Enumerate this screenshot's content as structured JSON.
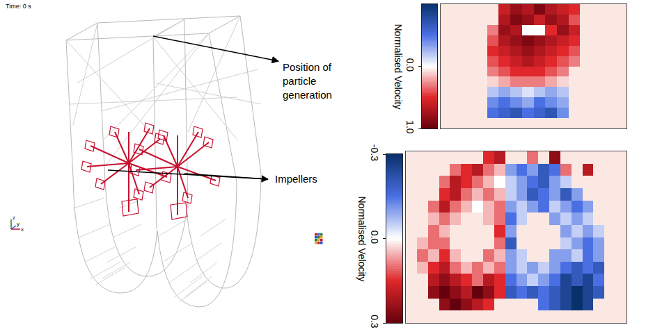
{
  "diagram": {
    "time_label": "Time: 0 s",
    "labels": [
      "Position of particle generation",
      "Impellers"
    ],
    "axes": [
      "z",
      "y",
      "x"
    ]
  },
  "chart_data": [
    {
      "type": "heatmap",
      "colorbar_title": "Normalised Velocity",
      "tick_labels": false,
      "colors": [
        "#08306b",
        "#4a6fe3",
        "#ffffff",
        "#e0272b",
        "#67000d"
      ],
      "zlim": [
        -1,
        1
      ],
      "zticks": [
        {
          "value": 0,
          "label": "0.0"
        },
        {
          "value": 1,
          "label": "1.0"
        }
      ],
      "cells": [
        [
          null,
          null,
          null,
          null,
          null,
          0.6,
          0.8,
          0.7,
          0.9,
          0.7,
          0.6,
          0.5,
          null,
          null,
          null,
          null
        ],
        [
          null,
          null,
          null,
          null,
          null,
          0.7,
          0.9,
          0.8,
          0.6,
          0.8,
          0.7,
          0.4,
          null,
          null,
          null,
          null
        ],
        [
          null,
          null,
          null,
          null,
          0.3,
          0.8,
          0.7,
          0.0,
          0.0,
          0.5,
          0.8,
          0.6,
          null,
          null,
          null,
          null
        ],
        [
          null,
          null,
          null,
          null,
          0.4,
          0.7,
          0.8,
          0.9,
          0.8,
          0.7,
          0.6,
          0.5,
          null,
          null,
          null,
          null
        ],
        [
          null,
          null,
          null,
          null,
          0.5,
          0.6,
          0.7,
          0.8,
          0.7,
          0.6,
          0.5,
          0.4,
          null,
          null,
          null,
          null
        ],
        [
          null,
          null,
          null,
          null,
          0.4,
          0.5,
          0.6,
          0.7,
          0.6,
          0.5,
          0.4,
          0.3,
          null,
          null,
          null,
          null
        ],
        [
          null,
          null,
          null,
          null,
          0.3,
          0.4,
          0.5,
          0.5,
          0.5,
          0.4,
          0.3,
          null,
          null,
          null,
          null,
          null
        ],
        [
          null,
          null,
          null,
          null,
          0.1,
          0.2,
          0.3,
          0.3,
          0.3,
          0.2,
          0.1,
          null,
          null,
          null,
          null,
          null
        ],
        [
          null,
          null,
          null,
          null,
          -0.2,
          -0.3,
          -0.2,
          -0.1,
          -0.2,
          -0.3,
          -0.2,
          null,
          null,
          null,
          null,
          null
        ],
        [
          null,
          null,
          null,
          null,
          -0.4,
          -0.5,
          -0.4,
          -0.3,
          -0.5,
          -0.4,
          -0.3,
          null,
          null,
          null,
          null,
          null
        ],
        [
          null,
          null,
          null,
          null,
          -0.5,
          -0.6,
          -0.7,
          -0.5,
          -0.6,
          -0.7,
          -0.4,
          null,
          null,
          null,
          null,
          null
        ],
        [
          null,
          null,
          null,
          null,
          null,
          null,
          null,
          null,
          null,
          null,
          null,
          null,
          null,
          null,
          null,
          null
        ]
      ]
    },
    {
      "type": "heatmap",
      "colorbar_title": "Normalised Velocity",
      "tick_labels": false,
      "colors": [
        "#08306b",
        "#4a6fe3",
        "#ffffff",
        "#e0272b",
        "#67000d"
      ],
      "zlim": [
        -0.3,
        0.3
      ],
      "zticks": [
        {
          "value": -0.3,
          "label": "-0.3"
        },
        {
          "value": 0,
          "label": "0.0"
        },
        {
          "value": 0.3,
          "label": "0.3"
        }
      ],
      "cells": [
        [
          null,
          null,
          null,
          null,
          null,
          null,
          null,
          0.15,
          0.2,
          null,
          null,
          0.1,
          null,
          0.25,
          null,
          null,
          null,
          null,
          null,
          null
        ],
        [
          null,
          null,
          null,
          null,
          0.1,
          0.15,
          0.2,
          0.1,
          0.05,
          -0.1,
          -0.15,
          -0.1,
          -0.2,
          -0.15,
          0.1,
          null,
          0.2,
          null,
          null,
          null
        ],
        [
          null,
          null,
          null,
          0.1,
          0.2,
          0.15,
          0.1,
          0.05,
          0.0,
          -0.05,
          -0.1,
          -0.15,
          -0.2,
          -0.1,
          -0.05,
          null,
          null,
          null,
          null,
          null
        ],
        [
          null,
          null,
          null,
          0.15,
          0.2,
          0.1,
          0.05,
          0.1,
          0.05,
          -0.05,
          -0.1,
          -0.2,
          -0.15,
          -0.1,
          -0.2,
          -0.1,
          null,
          null,
          null,
          null
        ],
        [
          null,
          null,
          0.1,
          0.2,
          0.1,
          0.05,
          0.0,
          0.05,
          0.1,
          -0.1,
          -0.05,
          -0.1,
          -0.15,
          -0.05,
          -0.1,
          -0.15,
          -0.1,
          null,
          null,
          null
        ],
        [
          null,
          null,
          0.05,
          0.1,
          0.05,
          null,
          null,
          0.05,
          0.1,
          -0.15,
          -0.05,
          null,
          null,
          -0.1,
          -0.05,
          -0.1,
          -0.05,
          null,
          null,
          null
        ],
        [
          null,
          null,
          0.1,
          0.05,
          null,
          null,
          null,
          null,
          0.15,
          -0.1,
          null,
          null,
          null,
          null,
          -0.1,
          -0.05,
          -0.1,
          -0.05,
          null,
          null
        ],
        [
          null,
          0.05,
          0.1,
          0.1,
          null,
          null,
          null,
          null,
          0.1,
          -0.2,
          null,
          null,
          null,
          null,
          -0.05,
          -0.1,
          -0.15,
          -0.1,
          null,
          null
        ],
        [
          null,
          0.1,
          0.05,
          0.15,
          0.05,
          null,
          null,
          0.1,
          0.05,
          -0.1,
          -0.05,
          null,
          null,
          -0.1,
          -0.1,
          -0.05,
          -0.15,
          -0.1,
          null,
          null
        ],
        [
          null,
          0.05,
          0.15,
          0.2,
          0.1,
          0.05,
          0.1,
          0.05,
          0.1,
          -0.1,
          -0.05,
          -0.1,
          -0.05,
          -0.1,
          -0.15,
          -0.2,
          -0.15,
          -0.2,
          null,
          null
        ],
        [
          null,
          null,
          0.2,
          0.25,
          0.2,
          0.15,
          0.1,
          0.2,
          0.15,
          -0.15,
          -0.1,
          -0.05,
          -0.1,
          -0.15,
          -0.25,
          -0.2,
          -0.25,
          -0.15,
          null,
          null
        ],
        [
          null,
          null,
          0.25,
          0.3,
          0.25,
          0.2,
          0.3,
          0.25,
          0.15,
          -0.2,
          -0.15,
          -0.2,
          -0.15,
          -0.2,
          -0.25,
          -0.3,
          -0.25,
          -0.2,
          null,
          null
        ],
        [
          null,
          null,
          null,
          0.25,
          0.3,
          0.25,
          0.2,
          0.15,
          null,
          null,
          null,
          null,
          -0.15,
          -0.2,
          -0.25,
          -0.3,
          -0.25,
          null,
          null,
          null
        ],
        [
          null,
          null,
          null,
          null,
          null,
          null,
          null,
          null,
          null,
          null,
          null,
          null,
          null,
          null,
          null,
          null,
          null,
          null,
          null,
          null
        ]
      ]
    }
  ]
}
